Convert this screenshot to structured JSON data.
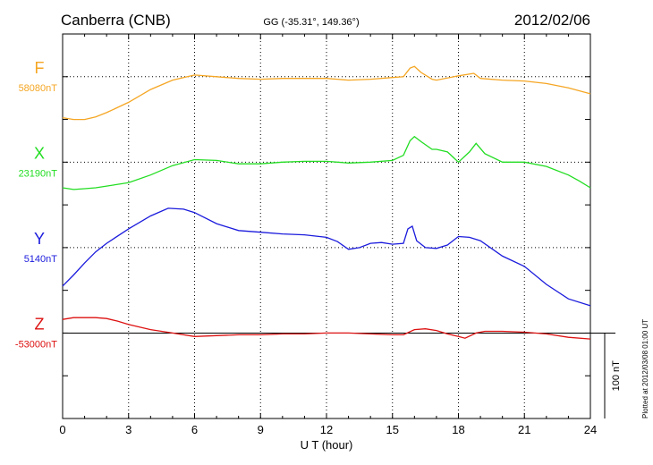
{
  "header": {
    "station": "Canberra (CNB)",
    "coords": "GG (-35.31°, 149.36°)",
    "date": "2012/02/06"
  },
  "side_note": "Plotted at 2012/03/08 01:00 UT",
  "scale_bar_label": "100 nT",
  "chart_data": {
    "type": "line",
    "title": "Canberra (CNB)",
    "subtitle": "GG (-35.31°, 149.36°)",
    "xlabel": "U T (hour)",
    "ylabel": "",
    "xlim": [
      0,
      24
    ],
    "x_ticks": [
      0,
      3,
      6,
      9,
      12,
      15,
      18,
      21,
      24
    ],
    "x_tick_labels": [
      "0",
      "3",
      "6",
      "9",
      "12",
      "15",
      "18",
      "21",
      "24"
    ],
    "grid": true,
    "scale_bar_nT": 100,
    "offset_range": [
      -100,
      350
    ],
    "series": [
      {
        "name": "F",
        "baseline_label": "58080nT",
        "color": "#f5a623",
        "baseline_offset": 300,
        "x": [
          0,
          0.5,
          1,
          1.5,
          2,
          3,
          4,
          5,
          6,
          7,
          8,
          9,
          10,
          11,
          12,
          13,
          14,
          15,
          15.5,
          15.8,
          16,
          16.3,
          16.8,
          17,
          18,
          18.7,
          19,
          20,
          21,
          22,
          23,
          24
        ],
        "y": [
          252,
          250,
          250,
          253,
          258,
          270,
          285,
          296,
          302,
          300,
          298,
          297,
          298,
          298,
          298,
          296,
          297,
          299,
          300,
          310,
          312,
          305,
          297,
          296,
          301,
          304,
          298,
          296,
          295,
          292,
          287,
          280
        ]
      },
      {
        "name": "X",
        "baseline_label": "23190nT",
        "color": "#22dd22",
        "baseline_offset": 200,
        "x": [
          0,
          0.5,
          1,
          1.5,
          2,
          3,
          4,
          5,
          6,
          7,
          8,
          9,
          10,
          11,
          12,
          13,
          14,
          15,
          15.5,
          15.8,
          16,
          16.3,
          16.8,
          17,
          17.5,
          18,
          18.5,
          18.8,
          19.2,
          20,
          21,
          22,
          23,
          23.5,
          24
        ],
        "y": [
          170,
          168,
          169,
          170,
          172,
          176,
          185,
          196,
          203,
          202,
          198,
          198,
          200,
          201,
          201,
          199,
          200,
          202,
          208,
          225,
          230,
          224,
          215,
          215,
          212,
          200,
          212,
          222,
          210,
          200,
          200,
          195,
          185,
          178,
          170
        ]
      },
      {
        "name": "Y",
        "baseline_label": "5140nT",
        "color": "#1b1bdd",
        "baseline_offset": 100,
        "x": [
          0,
          0.5,
          1,
          1.5,
          2,
          3,
          4,
          4.8,
          5.5,
          6,
          7,
          8,
          9,
          10,
          11,
          12,
          12.5,
          13,
          13.5,
          14,
          14.5,
          15,
          15.5,
          15.7,
          15.9,
          16.1,
          16.5,
          17,
          17.5,
          18,
          18.5,
          19,
          20,
          21,
          22,
          23,
          24
        ],
        "y": [
          55,
          68,
          82,
          95,
          105,
          122,
          137,
          146,
          145,
          141,
          128,
          120,
          118,
          116,
          115,
          112,
          107,
          98,
          100,
          105,
          106,
          104,
          105,
          122,
          125,
          108,
          100,
          99,
          103,
          113,
          112,
          108,
          90,
          78,
          57,
          40,
          32
        ]
      },
      {
        "name": "Z",
        "baseline_label": "-53000nT",
        "color": "#dd1111",
        "baseline_offset": 0,
        "x": [
          0,
          0.5,
          1,
          1.5,
          2,
          2.5,
          3,
          4,
          5,
          6,
          7,
          8,
          9,
          10,
          11,
          12,
          13,
          14,
          15,
          15.5,
          16,
          16.5,
          17,
          17.5,
          18,
          18.3,
          18.8,
          19.2,
          20,
          21,
          22,
          23,
          24
        ],
        "y": [
          16,
          18,
          18,
          18,
          17,
          14,
          10,
          4,
          0,
          -4,
          -3,
          -2,
          -2,
          -1,
          -1,
          0,
          0,
          -1,
          -2,
          -2,
          4,
          5,
          3,
          -1,
          -4,
          -6,
          0,
          2,
          2,
          1,
          -1,
          -5,
          -7
        ]
      }
    ]
  }
}
